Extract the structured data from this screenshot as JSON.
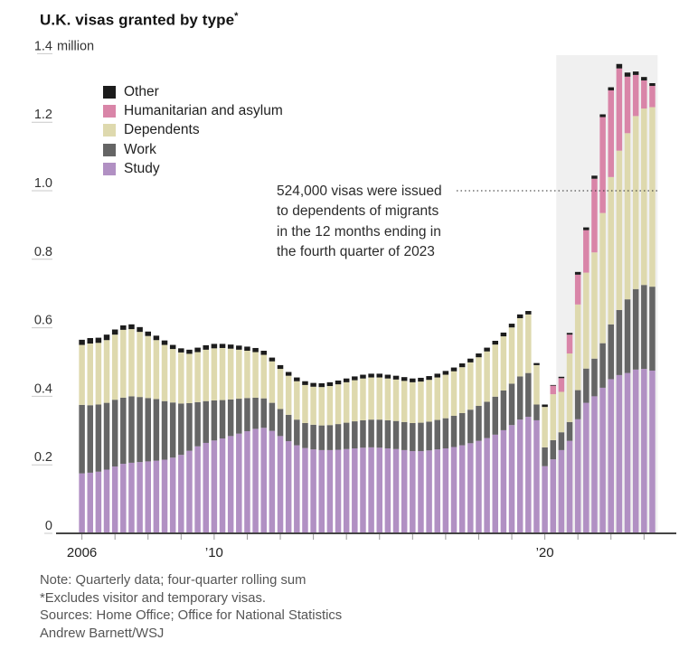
{
  "title": {
    "text": "U.K. visas granted by type",
    "asterisk": "*"
  },
  "y_axis": {
    "top_label": {
      "value": "1.4",
      "suffix": "million"
    },
    "tick_labels": [
      "1.2",
      "1.0",
      "0.8",
      "0.6",
      "0.4",
      "0.2",
      "0"
    ],
    "tick_values": [
      1.2,
      1.0,
      0.8,
      0.6,
      0.4,
      0.2,
      0
    ]
  },
  "x_axis": {
    "labels": [
      {
        "text": "2006",
        "quarter_index": 0
      },
      {
        "text": "’10",
        "quarter_index": 16
      },
      {
        "text": "’20",
        "quarter_index": 56
      }
    ]
  },
  "legend": [
    {
      "label": "Other",
      "color": "#1c1c1c"
    },
    {
      "label": "Humanitarian and asylum",
      "color": "#d985a8"
    },
    {
      "label": "Dependents",
      "color": "#ded9ae"
    },
    {
      "label": "Work",
      "color": "#656565"
    },
    {
      "label": "Study",
      "color": "#b190c3"
    }
  ],
  "annotation": {
    "lines": [
      "524,000 visas were issued",
      "to dependents of migrants",
      "in the 12 months ending in",
      "the fourth quarter of 2023"
    ],
    "leader_value": 1.0
  },
  "notes": [
    "Note: Quarterly data; four-quarter rolling sum",
    "*Excludes visitor and temporary visas.",
    "Sources: Home Office; Office for National Statistics",
    "Andrew Barnett/WSJ"
  ],
  "chart_data": {
    "type": "bar",
    "stacked": true,
    "title": "U.K. visas granted by type (excludes visitor and temporary visas)",
    "unit": "million visas, four-quarter rolling sum",
    "ylim": [
      0,
      1.4
    ],
    "grid": false,
    "legend_position": "upper-left, reversed stack order",
    "highlight_region": {
      "from": "2021 Q1",
      "to": "2023 Q4",
      "from_index": 58,
      "color": "#f0f0f0"
    },
    "annotation_line_value": 1.0,
    "x": [
      "2006 Q3",
      "2006 Q4",
      "2007 Q1",
      "2007 Q2",
      "2007 Q3",
      "2007 Q4",
      "2008 Q1",
      "2008 Q2",
      "2008 Q3",
      "2008 Q4",
      "2009 Q1",
      "2009 Q2",
      "2009 Q3",
      "2009 Q4",
      "2010 Q1",
      "2010 Q2",
      "2010 Q3",
      "2010 Q4",
      "2011 Q1",
      "2011 Q2",
      "2011 Q3",
      "2011 Q4",
      "2012 Q1",
      "2012 Q2",
      "2012 Q3",
      "2012 Q4",
      "2013 Q1",
      "2013 Q2",
      "2013 Q3",
      "2013 Q4",
      "2014 Q1",
      "2014 Q2",
      "2014 Q3",
      "2014 Q4",
      "2015 Q1",
      "2015 Q2",
      "2015 Q3",
      "2015 Q4",
      "2016 Q1",
      "2016 Q2",
      "2016 Q3",
      "2016 Q4",
      "2017 Q1",
      "2017 Q2",
      "2017 Q3",
      "2017 Q4",
      "2018 Q1",
      "2018 Q2",
      "2018 Q3",
      "2018 Q4",
      "2019 Q1",
      "2019 Q2",
      "2019 Q3",
      "2019 Q4",
      "2020 Q1",
      "2020 Q2",
      "2020 Q3",
      "2020 Q4",
      "2021 Q1",
      "2021 Q2",
      "2021 Q3",
      "2021 Q4",
      "2022 Q1",
      "2022 Q2",
      "2022 Q3",
      "2022 Q4",
      "2023 Q1",
      "2023 Q2",
      "2023 Q3",
      "2023 Q4"
    ],
    "series": [
      {
        "name": "Study",
        "color": "#b190c3",
        "values": [
          0.175,
          0.177,
          0.18,
          0.186,
          0.195,
          0.203,
          0.206,
          0.208,
          0.21,
          0.212,
          0.215,
          0.221,
          0.229,
          0.241,
          0.254,
          0.264,
          0.271,
          0.277,
          0.284,
          0.291,
          0.298,
          0.305,
          0.308,
          0.299,
          0.284,
          0.269,
          0.257,
          0.249,
          0.245,
          0.243,
          0.243,
          0.244,
          0.246,
          0.248,
          0.25,
          0.251,
          0.25,
          0.248,
          0.246,
          0.243,
          0.24,
          0.24,
          0.242,
          0.245,
          0.248,
          0.252,
          0.257,
          0.263,
          0.27,
          0.278,
          0.288,
          0.301,
          0.316,
          0.332,
          0.34,
          0.33,
          0.196,
          0.216,
          0.243,
          0.27,
          0.333,
          0.381,
          0.4,
          0.425,
          0.45,
          0.462,
          0.468,
          0.478,
          0.48,
          0.475
        ]
      },
      {
        "name": "Work",
        "color": "#656565",
        "values": [
          0.2,
          0.197,
          0.196,
          0.195,
          0.195,
          0.193,
          0.194,
          0.19,
          0.185,
          0.18,
          0.171,
          0.161,
          0.15,
          0.139,
          0.129,
          0.122,
          0.117,
          0.112,
          0.107,
          0.102,
          0.097,
          0.091,
          0.086,
          0.082,
          0.079,
          0.077,
          0.075,
          0.073,
          0.072,
          0.072,
          0.073,
          0.075,
          0.077,
          0.079,
          0.08,
          0.081,
          0.082,
          0.082,
          0.082,
          0.082,
          0.082,
          0.083,
          0.084,
          0.086,
          0.088,
          0.091,
          0.094,
          0.098,
          0.102,
          0.106,
          0.111,
          0.116,
          0.121,
          0.126,
          0.128,
          0.046,
          0.055,
          0.056,
          0.052,
          0.055,
          0.085,
          0.1,
          0.11,
          0.13,
          0.16,
          0.19,
          0.215,
          0.235,
          0.245,
          0.245
        ]
      },
      {
        "name": "Dependents",
        "color": "#ded9ae",
        "values": [
          0.175,
          0.18,
          0.18,
          0.183,
          0.19,
          0.198,
          0.196,
          0.19,
          0.181,
          0.172,
          0.164,
          0.156,
          0.149,
          0.144,
          0.146,
          0.15,
          0.152,
          0.152,
          0.148,
          0.143,
          0.138,
          0.133,
          0.127,
          0.121,
          0.117,
          0.114,
          0.112,
          0.111,
          0.111,
          0.112,
          0.114,
          0.116,
          0.118,
          0.12,
          0.122,
          0.123,
          0.123,
          0.122,
          0.121,
          0.12,
          0.119,
          0.12,
          0.122,
          0.124,
          0.127,
          0.13,
          0.134,
          0.138,
          0.142,
          0.147,
          0.152,
          0.158,
          0.164,
          0.17,
          0.171,
          0.115,
          0.118,
          0.134,
          0.118,
          0.2,
          0.25,
          0.28,
          0.31,
          0.38,
          0.43,
          0.465,
          0.485,
          0.505,
          0.515,
          0.524
        ]
      },
      {
        "name": "Humanitarian and asylum",
        "color": "#d985a8",
        "values": [
          0,
          0,
          0,
          0,
          0,
          0,
          0,
          0,
          0,
          0,
          0,
          0,
          0,
          0,
          0,
          0,
          0,
          0,
          0,
          0,
          0,
          0,
          0,
          0,
          0,
          0,
          0,
          0,
          0,
          0,
          0,
          0,
          0,
          0,
          0,
          0,
          0,
          0,
          0,
          0,
          0,
          0,
          0,
          0,
          0,
          0,
          0,
          0,
          0,
          0,
          0,
          0,
          0,
          0,
          0,
          0,
          0,
          0.025,
          0.04,
          0.055,
          0.087,
          0.124,
          0.215,
          0.28,
          0.253,
          0.24,
          0.165,
          0.12,
          0.082,
          0.062
        ]
      },
      {
        "name": "Other",
        "color": "#1c1c1c",
        "values": [
          0.015,
          0.016,
          0.015,
          0.016,
          0.015,
          0.013,
          0.014,
          0.014,
          0.013,
          0.013,
          0.013,
          0.012,
          0.012,
          0.012,
          0.013,
          0.013,
          0.013,
          0.012,
          0.012,
          0.012,
          0.012,
          0.012,
          0.012,
          0.011,
          0.011,
          0.011,
          0.011,
          0.011,
          0.011,
          0.011,
          0.011,
          0.011,
          0.011,
          0.011,
          0.011,
          0.011,
          0.011,
          0.011,
          0.011,
          0.011,
          0.011,
          0.011,
          0.011,
          0.011,
          0.011,
          0.011,
          0.011,
          0.011,
          0.011,
          0.011,
          0.011,
          0.011,
          0.011,
          0.011,
          0.01,
          0.006,
          0.007,
          0.002,
          0.004,
          0.005,
          0.008,
          0.008,
          0.009,
          0.008,
          0.009,
          0.013,
          0.012,
          0.01,
          0.01,
          0.008
        ]
      }
    ]
  }
}
